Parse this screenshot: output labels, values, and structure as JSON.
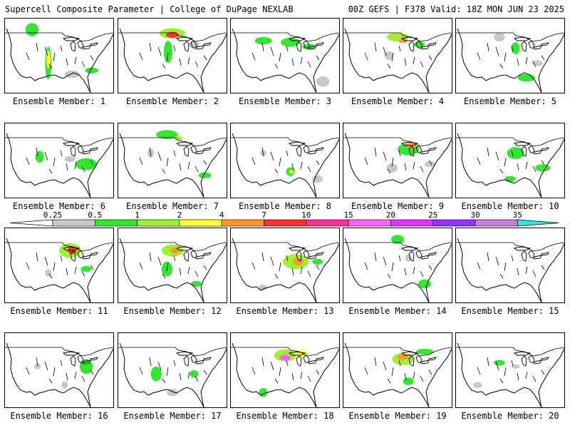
{
  "header": {
    "title": "Supercell Composite Parameter | College of DuPage NEXLAB",
    "run_info": "00Z GEFS | F378 Valid: 18Z MON JUN 23 2025"
  },
  "legend": {
    "ticks": [
      "0.25",
      "0.5",
      "1",
      "2",
      "4",
      "7",
      "10",
      "15",
      "20",
      "25",
      "30",
      "35"
    ],
    "colors": [
      "#ffffff",
      "#c8c8c8",
      "#32e632",
      "#a0f032",
      "#ffff32",
      "#ff9632",
      "#ff3232",
      "#ff3296",
      "#ff64ff",
      "#e632ff",
      "#9632ff",
      "#c87ddc",
      "#32e6e6"
    ]
  },
  "panels": [
    {
      "label": "Ensemble Member: 1"
    },
    {
      "label": "Ensemble Member: 2"
    },
    {
      "label": "Ensemble Member: 3"
    },
    {
      "label": "Ensemble Member: 4"
    },
    {
      "label": "Ensemble Member: 5"
    },
    {
      "label": "Ensemble Member: 6"
    },
    {
      "label": "Ensemble Member: 7"
    },
    {
      "label": "Ensemble Member: 8"
    },
    {
      "label": "Ensemble Member: 9"
    },
    {
      "label": "Ensemble Member: 10"
    },
    {
      "label": "Ensemble Member: 11"
    },
    {
      "label": "Ensemble Member: 12"
    },
    {
      "label": "Ensemble Member: 13"
    },
    {
      "label": "Ensemble Member: 14"
    },
    {
      "label": "Ensemble Member: 15"
    },
    {
      "label": "Ensemble Member: 16"
    },
    {
      "label": "Ensemble Member: 17"
    },
    {
      "label": "Ensemble Member: 18"
    },
    {
      "label": "Ensemble Member: 19"
    },
    {
      "label": "Ensemble Member: 20"
    }
  ]
}
